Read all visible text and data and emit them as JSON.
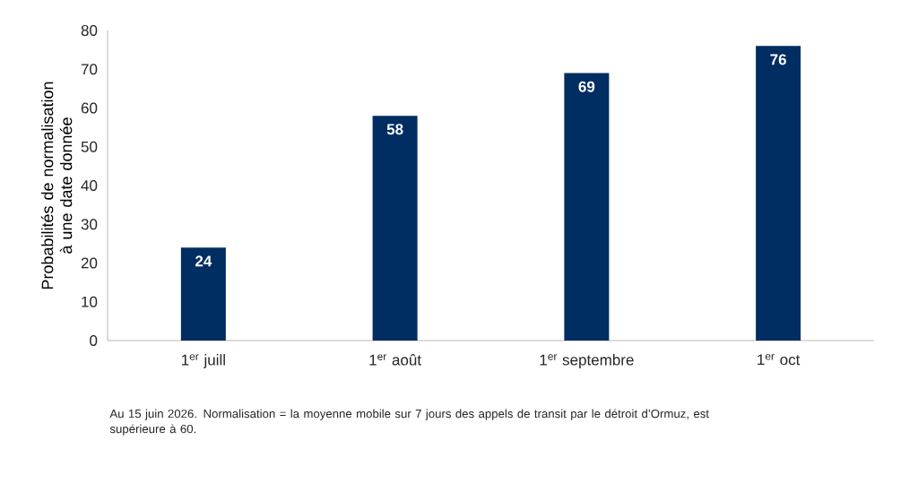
{
  "chart_data": {
    "type": "bar",
    "ylabel": "Probabilités de normalisation à une date donnée",
    "categories": [
      "1$^{er}$ juill",
      "1$^{er}$ août",
      "1$^{er}$ septembre",
      "1$^{er}$ oct"
    ],
    "values": [
      24,
      58,
      69,
      76
    ],
    "color": "#002d62",
    "ylim": [
      0,
      80
    ],
    "yticks": [
      0,
      10,
      20,
      30,
      40,
      50,
      60,
      70,
      80
    ],
    "data_labels": true,
    "annotations": [
      "Au 15 juin 2026. Normalisation = la moyenne mobile sur 7 jours des appels de transit par le détroit d’Ormuz, est supérieure à 60."
    ]
  }
}
